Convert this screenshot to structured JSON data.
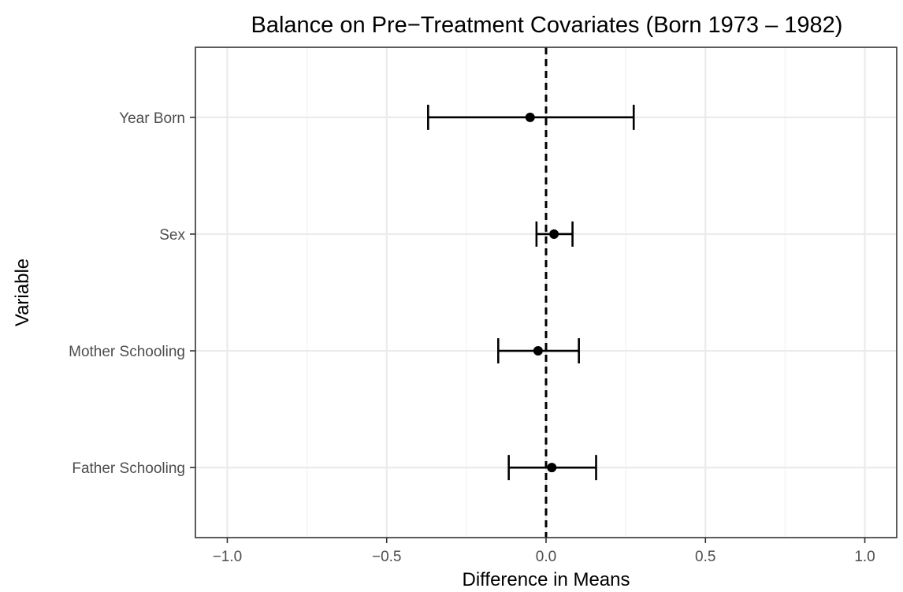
{
  "chart_data": {
    "type": "scatter",
    "title": "Balance on Pre−Treatment Covariates (Born 1973 – 1982)",
    "xlabel": "Difference in Means",
    "ylabel": "Variable",
    "xlim": [
      -1.1,
      1.1
    ],
    "x_ticks": [
      -1.0,
      -0.5,
      0.0,
      0.5,
      1.0
    ],
    "x_tick_labels": [
      "−1.0",
      "−0.5",
      "0.0",
      "0.5",
      "1.0"
    ],
    "categories": [
      "Year Born",
      "Sex",
      "Mother Schooling",
      "Father Schooling"
    ],
    "points": [
      {
        "label": "Year Born",
        "estimate": -0.05,
        "lower": -0.37,
        "upper": 0.275
      },
      {
        "label": "Sex",
        "estimate": 0.025,
        "lower": -0.03,
        "upper": 0.083
      },
      {
        "label": "Mother Schooling",
        "estimate": -0.025,
        "lower": -0.15,
        "upper": 0.103
      },
      {
        "label": "Father Schooling",
        "estimate": 0.018,
        "lower": -0.117,
        "upper": 0.157
      }
    ],
    "reference_line": 0.0,
    "grid": true,
    "colors": {
      "background": "#ffffff",
      "panel_border": "#333333",
      "grid_major": "#ebebeb",
      "grid_minor": "#f2f2f2",
      "marker": "#000000",
      "tick_text": "#4d4d4d"
    }
  }
}
